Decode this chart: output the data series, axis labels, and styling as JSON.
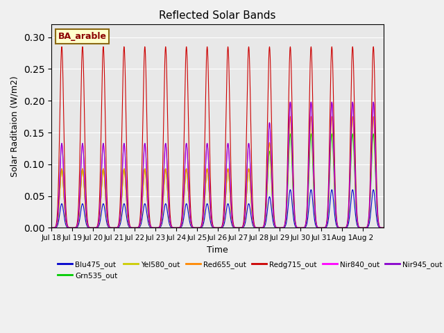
{
  "title": "Reflected Solar Bands",
  "xlabel": "Time",
  "ylabel": "Solar Raditaion (W/m2)",
  "annotation": "BA_arable",
  "background_color": "#e8e8e8",
  "ylim": [
    0,
    0.32
  ],
  "series": [
    {
      "label": "Blu475_out",
      "color": "#0000cc",
      "peak_scale": 0.038,
      "late_scale": 0.06
    },
    {
      "label": "Grn535_out",
      "color": "#00cc00",
      "peak_scale": 0.093,
      "late_scale": 0.148
    },
    {
      "label": "Yel580_out",
      "color": "#cccc00",
      "peak_scale": 0.093,
      "late_scale": 0.175
    },
    {
      "label": "Red655_out",
      "color": "#ff8800",
      "peak_scale": 0.093,
      "late_scale": 0.175
    },
    {
      "label": "Redg715_out",
      "color": "#cc0000",
      "peak_scale": 0.285,
      "late_scale": 0.285
    },
    {
      "label": "Nir840_out",
      "color": "#ff00ff",
      "peak_scale": 0.133,
      "late_scale": 0.198
    },
    {
      "label": "Nir945_out",
      "color": "#8800cc",
      "peak_scale": 0.133,
      "late_scale": 0.198
    }
  ],
  "n_days": 16,
  "points_per_day": 200,
  "xtick_positions": [
    0,
    1,
    2,
    3,
    4,
    5,
    6,
    7,
    8,
    9,
    10,
    11,
    12,
    13,
    14,
    15
  ],
  "xtick_labels": [
    "Jul 18",
    "Jul 19",
    "Jul 20",
    "Jul 21",
    "Jul 22",
    "Jul 23",
    "Jul 24",
    "Jul 25",
    "Jul 26",
    "Jul 27",
    "Jul 28",
    "Jul 29",
    "Jul 30",
    "Jul 31",
    "Aug 1",
    "Aug 2"
  ],
  "legend_items": [
    {
      "label": "Blu475_out",
      "color": "#0000cc"
    },
    {
      "label": "Grn535_out",
      "color": "#00cc00"
    },
    {
      "label": "Yel580_out",
      "color": "#cccc00"
    },
    {
      "label": "Red655_out",
      "color": "#ff8800"
    },
    {
      "label": "Redg715_out",
      "color": "#cc0000"
    },
    {
      "label": "Nir840_out",
      "color": "#ff00ff"
    },
    {
      "label": "Nir945_out",
      "color": "#8800cc"
    }
  ]
}
